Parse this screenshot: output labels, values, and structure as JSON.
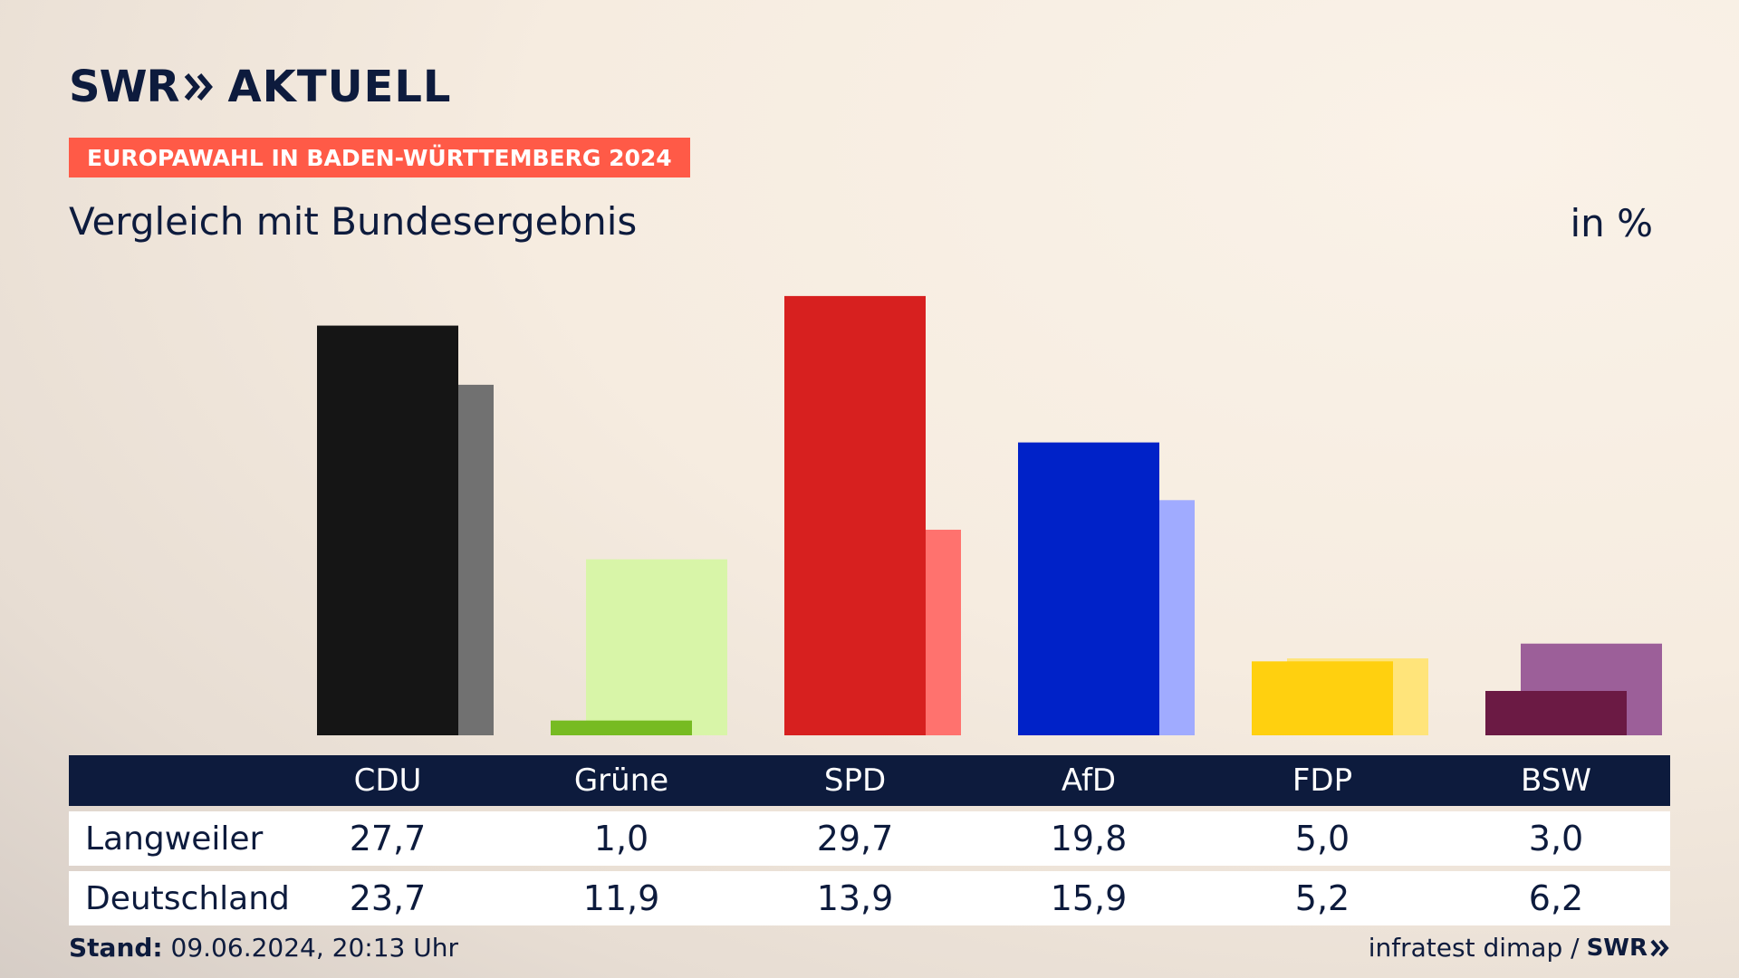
{
  "header": {
    "logo_brand": "SWR",
    "logo_product": "AKTUELL",
    "banner": "EUROPAWAHL IN BADEN-WÜRTTEMBERG 2024",
    "subtitle": "Vergleich mit Bundesergebnis",
    "unit": "in %"
  },
  "chart_data": {
    "type": "bar",
    "categories": [
      "CDU",
      "Grüne",
      "SPD",
      "AfD",
      "FDP",
      "BSW"
    ],
    "series": [
      {
        "name": "Langweiler",
        "values": [
          27.7,
          1.0,
          29.7,
          19.8,
          5.0,
          3.0
        ]
      },
      {
        "name": "Deutschland",
        "values": [
          23.7,
          11.9,
          13.9,
          15.9,
          5.2,
          6.2
        ]
      }
    ],
    "colors": {
      "primary": [
        "#151515",
        "#77bb22",
        "#d7201f",
        "#0022c8",
        "#ffd00f",
        "#6b1a44"
      ],
      "secondary": [
        "#717171",
        "#d8f5a8",
        "#ff726e",
        "#a0abff",
        "#ffe47a",
        "#9c5f99"
      ]
    },
    "ylim": [
      0,
      30
    ],
    "legend": "table-below",
    "grid": false
  },
  "table": {
    "rows": [
      {
        "label": "Langweiler",
        "values": [
          "27,7",
          "1,0",
          "29,7",
          "19,8",
          "5,0",
          "3,0"
        ]
      },
      {
        "label": "Deutschland",
        "values": [
          "23,7",
          "11,9",
          "13,9",
          "15,9",
          "5,2",
          "6,2"
        ]
      }
    ]
  },
  "footer": {
    "stand_label": "Stand:",
    "stand_value": "09.06.2024, 20:13 Uhr",
    "source": "infratest dimap /",
    "source_logo": "SWR"
  }
}
